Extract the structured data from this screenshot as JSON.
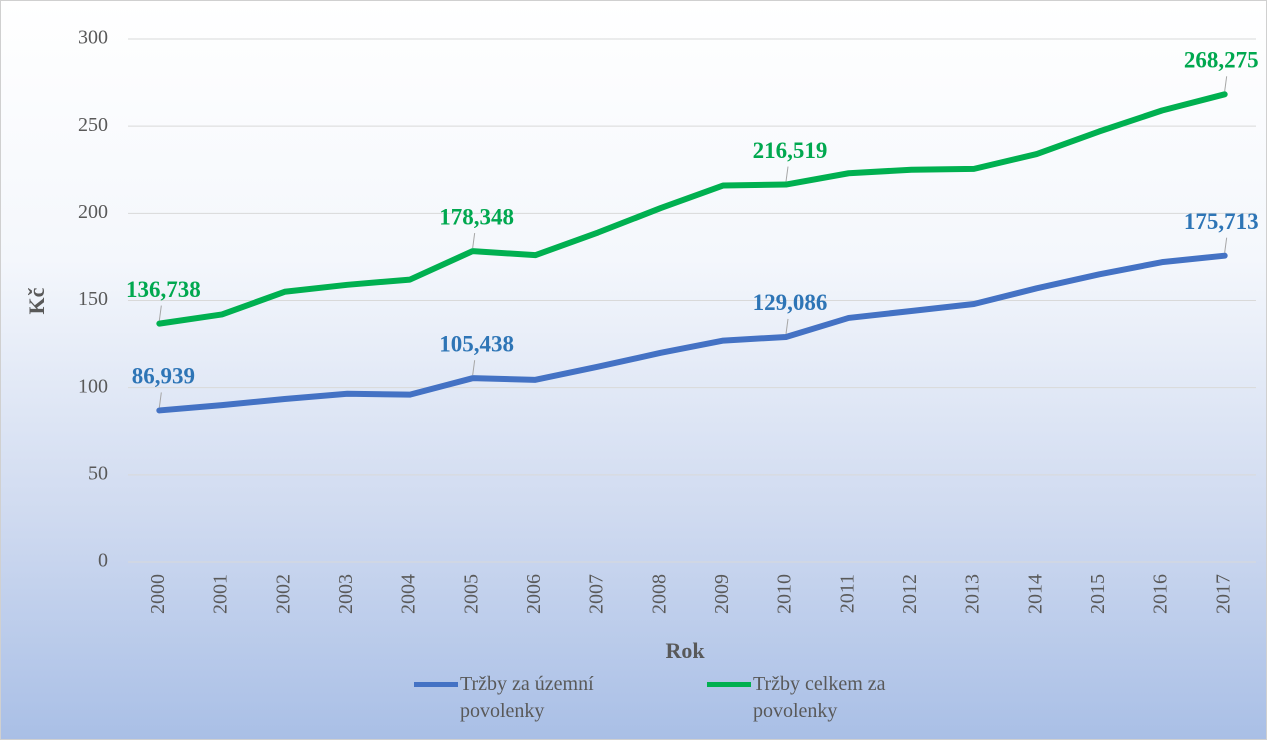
{
  "chart_data": {
    "type": "line",
    "x_label": "Rok",
    "y_label": "Kč",
    "categories": [
      "2000",
      "2001",
      "2002",
      "2003",
      "2004",
      "2005",
      "2006",
      "2007",
      "2008",
      "2009",
      "2010",
      "2011",
      "2012",
      "2013",
      "2014",
      "2015",
      "2016",
      "2017"
    ],
    "ylim": [
      0,
      300
    ],
    "yticks": [
      0,
      50,
      100,
      150,
      200,
      250,
      300
    ],
    "grid": true,
    "legend": "bottom",
    "series": [
      {
        "name": "Tržby za územní povolenky",
        "color": "#4472c4",
        "label_color": "#2e75b6",
        "values": [
          86.939,
          90,
          93.5,
          96.5,
          96,
          105.438,
          104.5,
          112,
          120,
          127,
          129.086,
          140,
          144,
          148,
          157,
          165,
          172,
          175.713
        ],
        "value_labels": [
          "86,939",
          null,
          null,
          null,
          null,
          "105,438",
          null,
          null,
          null,
          null,
          "129,086",
          null,
          null,
          null,
          null,
          null,
          null,
          "175,713"
        ]
      },
      {
        "name": "Tržby celkem za povolenky",
        "color": "#00b050",
        "label_color": "#00a84f",
        "values": [
          136.738,
          142,
          155,
          159,
          162,
          178.348,
          176,
          189,
          203,
          216,
          216.519,
          223,
          225,
          225.5,
          234,
          247,
          259,
          268.275
        ],
        "value_labels": [
          "136,738",
          null,
          null,
          null,
          null,
          "178,348",
          null,
          null,
          null,
          null,
          "216,519",
          null,
          null,
          null,
          null,
          null,
          null,
          "268,275"
        ]
      }
    ]
  }
}
